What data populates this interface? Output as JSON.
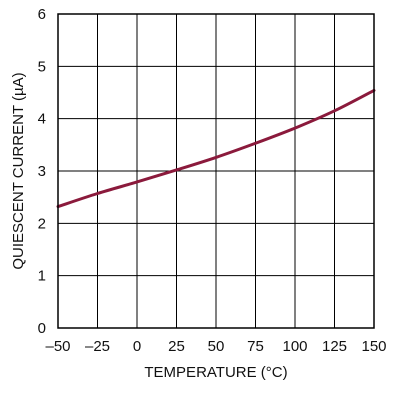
{
  "chart_data": {
    "type": "line",
    "title": "",
    "xlabel": "TEMPERATURE (°C)",
    "ylabel": "QUIESCENT CURRENT (µA)",
    "xlim": [
      -50,
      150
    ],
    "ylim": [
      0,
      6
    ],
    "x_ticks": [
      "–50",
      "–25",
      "0",
      "25",
      "50",
      "75",
      "100",
      "125",
      "150"
    ],
    "x_tick_values": [
      -50,
      -25,
      0,
      25,
      50,
      75,
      100,
      125,
      150
    ],
    "y_ticks": [
      "0",
      "1",
      "2",
      "3",
      "4",
      "5",
      "6"
    ],
    "y_tick_values": [
      0,
      1,
      2,
      3,
      4,
      5,
      6
    ],
    "grid": true,
    "legend": "none",
    "colors": {
      "series": "#8b1a3c",
      "grid": "#000000",
      "frame": "#000000"
    },
    "series": [
      {
        "x": [
          -50,
          -25,
          0,
          25,
          50,
          75,
          100,
          125,
          150
        ],
        "y": [
          2.32,
          2.57,
          2.79,
          3.02,
          3.26,
          3.53,
          3.82,
          4.15,
          4.54
        ]
      }
    ]
  }
}
